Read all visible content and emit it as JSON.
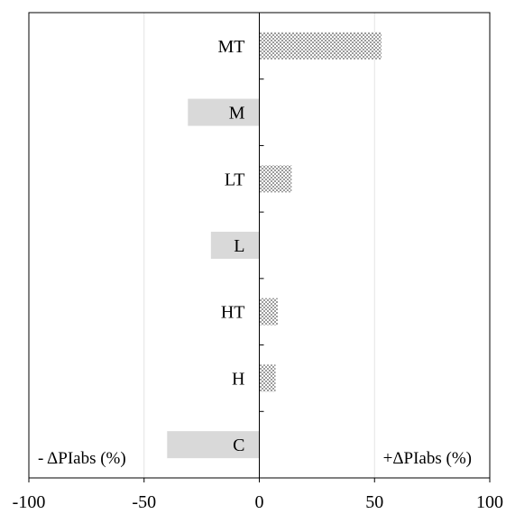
{
  "chart_data": {
    "type": "bar",
    "orientation": "horizontal",
    "categories": [
      "MT",
      "M",
      "LT",
      "L",
      "HT",
      "H",
      "C"
    ],
    "values": [
      53,
      -31,
      14,
      -21,
      8,
      7,
      -40
    ],
    "category_fill": {
      "MT": "dotted",
      "M": "solid-gray",
      "LT": "dotted",
      "L": "solid-gray",
      "HT": "dotted",
      "H": "solid-gray-dotted",
      "C": "solid-gray"
    },
    "xlim": [
      -100,
      100
    ],
    "x_ticks": [
      "-100",
      "-50",
      "0",
      "50",
      "100"
    ],
    "x_tick_values": [
      -100,
      -50,
      0,
      50,
      100
    ],
    "grid": "vertical",
    "title": "",
    "xlabel": "",
    "ylabel": "",
    "annotations": {
      "negative_label": "- ΔPIabs (%)",
      "positive_label": "+ΔPIabs (%)"
    },
    "colors": {
      "gray_bar": "#d9d9d9",
      "dot": "#555555",
      "grid": "#e4e4e4",
      "axis": "#000000"
    }
  }
}
